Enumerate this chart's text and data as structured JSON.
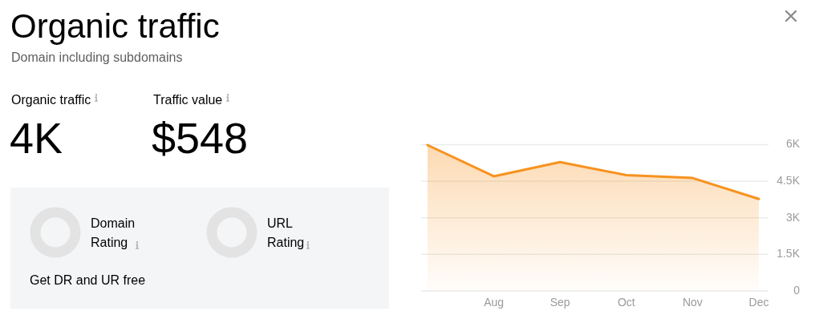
{
  "chart_data": [
    {
      "type": "other",
      "title": "Organic traffic",
      "subtitle": "Domain including subdomains",
      "annotations": [
        "Organic traffic",
        "4K",
        "Traffic value",
        "$548",
        "Domain Rating",
        "URL Rating",
        "Get DR and UR free"
      ]
    },
    {
      "type": "area",
      "categories": [
        null,
        "Aug",
        "Sep",
        "Oct",
        "Nov",
        "Dec"
      ],
      "values": [
        5980,
        4700,
        5280,
        4750,
        4630,
        3770
      ],
      "color": "#f7921e",
      "ylim": [
        0,
        6000
      ],
      "yticks": [
        0,
        {
          "value": 1500,
          "label": "1.5K"
        },
        {
          "value": 3000,
          "label": "3K"
        },
        {
          "value": 4500,
          "label": "4.5K"
        },
        {
          "value": 6000,
          "label": "6K"
        }
      ],
      "grid": "y"
    }
  ]
}
